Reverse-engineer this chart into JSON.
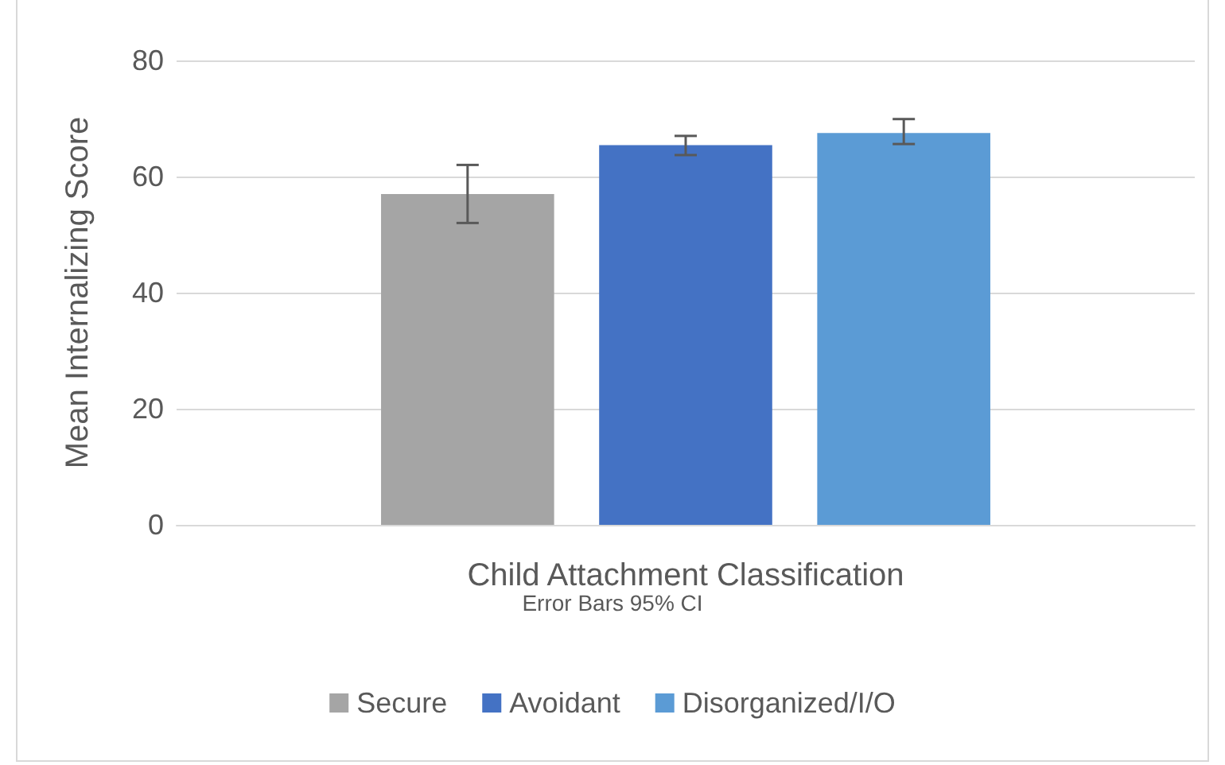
{
  "chart_data": {
    "type": "bar",
    "xlabel": "Child Attachment Classification",
    "ylabel": "Mean Internalizing Score",
    "annotations": [
      "Error Bars 95% CI"
    ],
    "categories": [
      null
    ],
    "series": [
      {
        "name": "Secure",
        "color": "#a5a5a5",
        "values": [
          57
        ],
        "errors": [
          [
            52,
            62
          ]
        ]
      },
      {
        "name": "Avoidant",
        "color": "#4472c4",
        "values": [
          65.4
        ],
        "errors": [
          [
            63.7,
            67
          ]
        ]
      },
      {
        "name": "Disorganized/I/O",
        "color": "#5b9bd5",
        "values": [
          67.5
        ],
        "errors": [
          [
            65.6,
            69.9
          ]
        ]
      }
    ],
    "ylim": [
      0,
      80
    ],
    "yticks": [
      0,
      20,
      40,
      60,
      80
    ],
    "grid": "y",
    "legend": "bottom"
  }
}
